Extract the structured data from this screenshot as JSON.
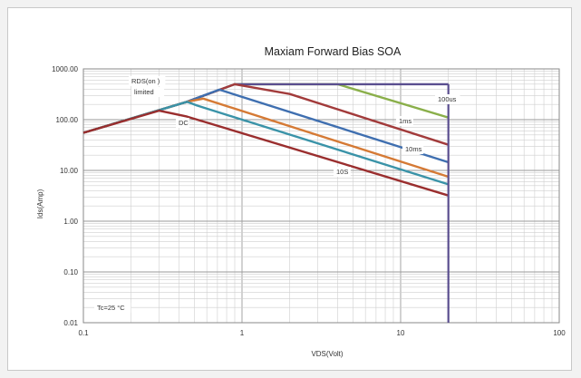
{
  "chart_data": {
    "type": "line",
    "title": "Maxiam Forward Bias SOA",
    "xlabel": "VDS(Volt)",
    "ylabel": "Ids(Amp)",
    "x_scale": "log",
    "y_scale": "log",
    "xlim": [
      0.1,
      100
    ],
    "ylim": [
      0.01,
      1000
    ],
    "x_ticks": [
      0.1,
      1,
      10,
      100
    ],
    "x_tick_labels": [
      "0.1",
      "1",
      "10",
      "100"
    ],
    "y_ticks": [
      0.01,
      0.1,
      1,
      10,
      100,
      1000
    ],
    "y_tick_labels": [
      "0.01",
      "0.10",
      "1.00",
      "10.00",
      "100.00",
      "1000.00"
    ],
    "grid": true,
    "series": [
      {
        "name": "100us",
        "color": "#8aaf4a",
        "points": [
          [
            0.1,
            55
          ],
          [
            0.45,
            225
          ],
          [
            0.9,
            500
          ],
          [
            4,
            500
          ],
          [
            20,
            110
          ]
        ]
      },
      {
        "name": "1ms",
        "color": "#5a4e8f",
        "points": [
          [
            0.1,
            55
          ],
          [
            0.45,
            225
          ],
          [
            0.9,
            500
          ],
          [
            20,
            500
          ]
        ]
      },
      {
        "name": "10ms",
        "color": "#a23b3b",
        "points": [
          [
            0.1,
            55
          ],
          [
            0.45,
            225
          ],
          [
            0.9,
            500
          ],
          [
            2,
            320
          ],
          [
            20,
            32
          ]
        ]
      },
      {
        "name": "",
        "color": "#3f6fb0",
        "points": [
          [
            0.1,
            55
          ],
          [
            0.45,
            225
          ],
          [
            0.72,
            390
          ],
          [
            20,
            14.5
          ]
        ]
      },
      {
        "name": "",
        "color": "#d57a35",
        "points": [
          [
            0.1,
            55
          ],
          [
            0.45,
            225
          ],
          [
            0.57,
            260
          ],
          [
            20,
            7.5
          ]
        ]
      },
      {
        "name": "10S",
        "color": "#3a93a8",
        "points": [
          [
            0.1,
            55
          ],
          [
            0.45,
            225
          ],
          [
            0.52,
            190
          ],
          [
            20,
            5.3
          ]
        ]
      },
      {
        "name": "DC",
        "color": "#9a2e2e",
        "points": [
          [
            0.1,
            55
          ],
          [
            0.3,
            150
          ],
          [
            0.45,
            115
          ],
          [
            20,
            3.2
          ]
        ]
      }
    ],
    "vertical_limit": {
      "x": 20,
      "color": "#5a4e8f"
    },
    "annotations": [
      {
        "id": "rds_line1",
        "text": "RDS(on )"
      },
      {
        "id": "rds_line2",
        "text": "limited"
      },
      {
        "id": "dc",
        "text": "DC"
      },
      {
        "id": "us100",
        "text": "100us"
      },
      {
        "id": "ms1",
        "text": "1ms"
      },
      {
        "id": "ms10",
        "text": "10ms"
      },
      {
        "id": "s10",
        "text": "10S"
      },
      {
        "id": "tc",
        "text": "Tc=25 °C"
      }
    ]
  }
}
